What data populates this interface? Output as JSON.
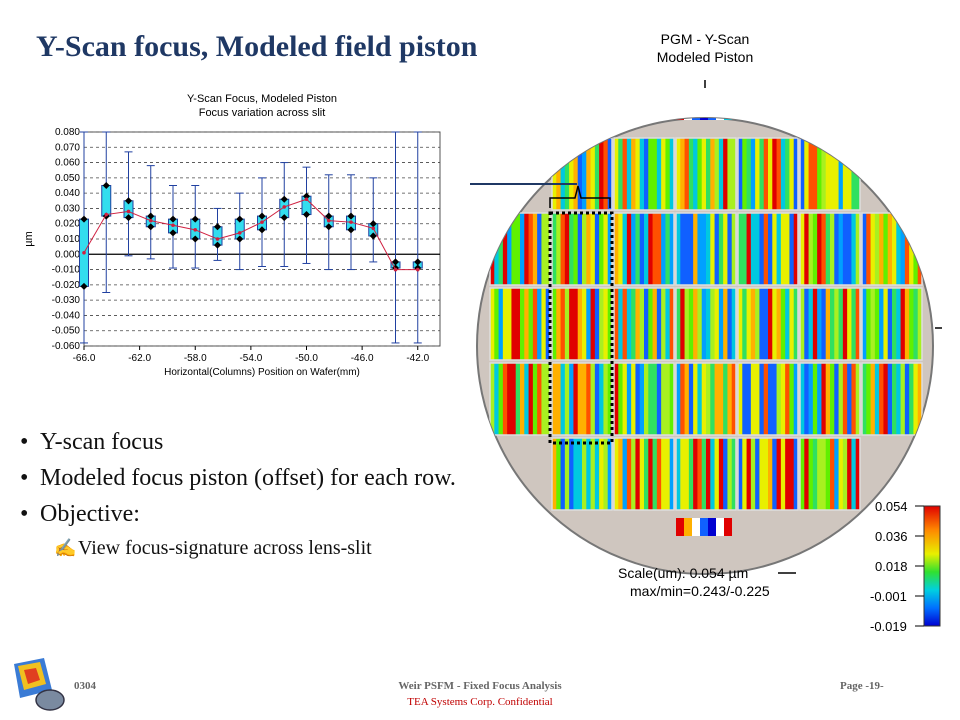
{
  "slide": {
    "title": "Y-Scan focus, Modeled field piston"
  },
  "chart_data": {
    "type": "box",
    "title": "Y-Scan Focus, Modeled Piston",
    "subtitle": "Focus variation across slit",
    "xlabel": "Horizontal(Columns) Position on Wafer(mm)",
    "ylabel": "µm",
    "xticks": [
      "-66.0",
      "-62.0",
      "-58.0",
      "-54.0",
      "-50.0",
      "-46.0",
      "-42.0"
    ],
    "yticks": [
      "0.080",
      "0.070",
      "0.060",
      "0.050",
      "0.040",
      "0.030",
      "0.020",
      "0.010",
      "0.000",
      "-0.010",
      "-0.020",
      "-0.030",
      "-0.040",
      "-0.050",
      "-0.060"
    ],
    "ylim": [
      -0.06,
      0.08
    ],
    "xlim": [
      -66.0,
      -40.4
    ],
    "x": [
      -66.0,
      -64.4,
      -62.8,
      -61.2,
      -59.6,
      -58.0,
      -56.4,
      -54.8,
      -53.2,
      -51.6,
      -50.0,
      -48.4,
      -46.8,
      -45.2,
      -43.6,
      -42.0
    ],
    "box_low": [
      -0.021,
      0.025,
      0.024,
      0.018,
      0.014,
      0.01,
      0.006,
      0.01,
      0.016,
      0.024,
      0.026,
      0.018,
      0.016,
      0.012,
      -0.009,
      -0.009
    ],
    "box_high": [
      0.023,
      0.045,
      0.035,
      0.025,
      0.023,
      0.023,
      0.018,
      0.023,
      0.025,
      0.036,
      0.038,
      0.025,
      0.025,
      0.02,
      -0.005,
      -0.005
    ],
    "median": [
      0.001,
      0.026,
      0.028,
      0.022,
      0.019,
      0.016,
      0.01,
      0.014,
      0.021,
      0.031,
      0.036,
      0.022,
      0.021,
      0.017,
      -0.01,
      -0.01
    ],
    "whisker_low": [
      -0.058,
      -0.025,
      -0.001,
      -0.003,
      -0.009,
      -0.009,
      -0.004,
      -0.01,
      -0.008,
      -0.008,
      -0.006,
      -0.01,
      -0.01,
      -0.005,
      -0.058,
      -0.058
    ],
    "whisker_high": [
      0.08,
      0.08,
      0.067,
      0.058,
      0.045,
      0.045,
      0.03,
      0.04,
      0.05,
      0.06,
      0.057,
      0.052,
      0.052,
      0.05,
      0.08,
      0.08
    ]
  },
  "wafer": {
    "title_line1": "PGM - Y-Scan",
    "title_line2": "Modeled Piston",
    "scale_values": [
      "0.054",
      "0.036",
      "0.018",
      "-0.001",
      "-0.019"
    ],
    "scale_text": "Scale(um): 0.054 µm",
    "maxmin_text": "max/min=0.243/-0.225"
  },
  "bullets": [
    "Y-scan focus",
    "Modeled focus piston (offset) for each row.",
    "Objective:"
  ],
  "sub_bullet": "View focus-signature across lens-slit",
  "footer": {
    "code": "0304",
    "center": "Weir PSFM - Fixed Focus Analysis",
    "company": "TEA Systems Corp. Confidential",
    "page": "Page -19-"
  }
}
